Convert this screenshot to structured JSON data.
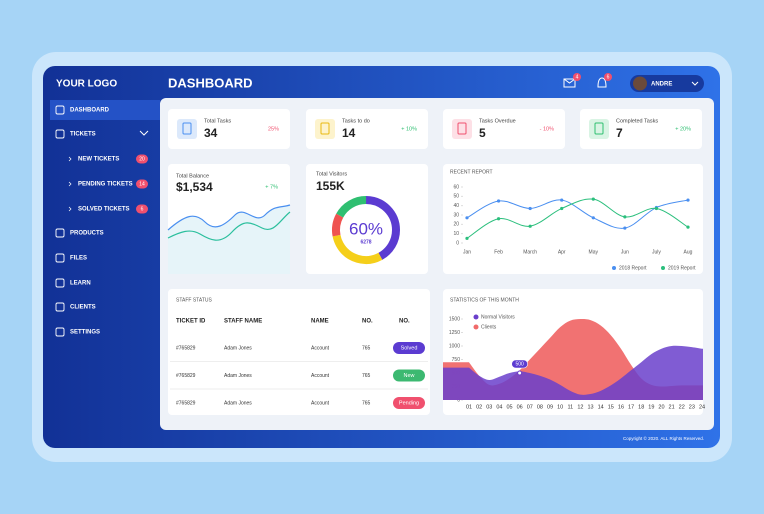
{
  "sidebar": {
    "logo": "YOUR LOGO",
    "menu": [
      "DASHBOARD",
      "TICKETS",
      "PRODUCTS",
      "FILES",
      "LEARN",
      "CLIENTS",
      "SETTINGS"
    ],
    "tickets": [
      {
        "label": "NEW TICKETS",
        "count": "20"
      },
      {
        "label": "PENDING TICKETS",
        "count": "14"
      },
      {
        "label": "SOLVED TICKETS",
        "count": "6"
      }
    ]
  },
  "header": {
    "title": "DASHBOARD",
    "mail_badge": "4",
    "bell_badge": "6",
    "user": "ANDRE"
  },
  "stats": [
    {
      "label": "Total Tasks",
      "value": "34",
      "change": "25%",
      "color": "#f0506e"
    },
    {
      "label": "Tasks to do",
      "value": "14",
      "change": "+ 10%",
      "color": "#2fbf71"
    },
    {
      "label": "Tasks Overdue",
      "value": "5",
      "change": "- 10%",
      "color": "#f0506e"
    },
    {
      "label": "Completed Tasks",
      "value": "7",
      "change": "+ 20%",
      "color": "#2fbf71"
    }
  ],
  "balance": {
    "label": "Total Balance",
    "value": "$1,534",
    "change": "+ 7%"
  },
  "table": {
    "title": "STAFF STATUS",
    "header": [
      "TICKET ID",
      "STAFF NAME",
      "NAME",
      "NO.",
      "NO."
    ],
    "rows": [
      [
        "#765829",
        "Adam Jones",
        "Account",
        "765",
        "Solved"
      ],
      [
        "#765829",
        "Adam Jones",
        "Account",
        "765",
        "New"
      ],
      [
        "#765829",
        "Adam Jones",
        "Account",
        "765",
        "Pending"
      ]
    ],
    "status_colors": [
      "#5b3bd1",
      "#3cb971",
      "#f0506e"
    ]
  },
  "chart_data": [
    {
      "type": "line",
      "title": "RECENT REPORT",
      "categories": [
        "Jan",
        "Feb",
        "March",
        "Apr",
        "May",
        "Jun",
        "July",
        "Aug"
      ],
      "series": [
        {
          "name": "2018 Report",
          "color": "#4a8ff0",
          "values": [
            27,
            45,
            37,
            46,
            27,
            16,
            38,
            46
          ]
        },
        {
          "name": "2019 Report",
          "color": "#2bbf7d",
          "values": [
            5,
            26,
            18,
            37,
            47,
            28,
            37,
            17
          ]
        }
      ],
      "ylim": [
        0,
        60
      ],
      "yticks": [
        0,
        10,
        20,
        30,
        40,
        50,
        60
      ],
      "legend": "bottom-right"
    },
    {
      "type": "area",
      "title": "STATISTICS OF THIS MONTH",
      "categories": [
        "01",
        "02",
        "03",
        "04",
        "05",
        "06",
        "07",
        "08",
        "09",
        "10",
        "11",
        "12",
        "13",
        "14",
        "15",
        "16",
        "17",
        "18",
        "19",
        "20",
        "21",
        "22",
        "23",
        "24"
      ],
      "series": [
        {
          "name": "Normal Visitors",
          "color": "#6a3fcb",
          "values": [
            600,
            450,
            370,
            430,
            500,
            530,
            500,
            450,
            380,
            280,
            170,
            100,
            110,
            170,
            270,
            400,
            550,
            700,
            850,
            950,
            1000,
            1000,
            980,
            950
          ]
        },
        {
          "name": "Clients",
          "color": "#f06a6a",
          "values": [
            700,
            450,
            280,
            300,
            400,
            550,
            750,
            950,
            1150,
            1350,
            1470,
            1500,
            1480,
            1380,
            1200,
            950,
            650,
            400,
            280,
            250,
            260,
            270,
            270,
            270
          ]
        }
      ],
      "ylim": [
        0,
        1500
      ],
      "yticks": [
        0,
        250,
        500,
        750,
        1000,
        1250,
        1500
      ],
      "legend": "top-left",
      "annotation": {
        "category": "06",
        "y": 500
      }
    },
    {
      "type": "pie",
      "title": "Total Visitors",
      "subtitle": "155K",
      "center_label": "60%",
      "center_sublabel": "6278",
      "values": [
        42,
        30,
        11,
        17
      ],
      "colors": [
        "#5b3bd1",
        "#f5cf1a",
        "#ef5350",
        "#2fbf71"
      ]
    }
  ],
  "footer": "Copyright © 2020. ALL Rights Reserved."
}
